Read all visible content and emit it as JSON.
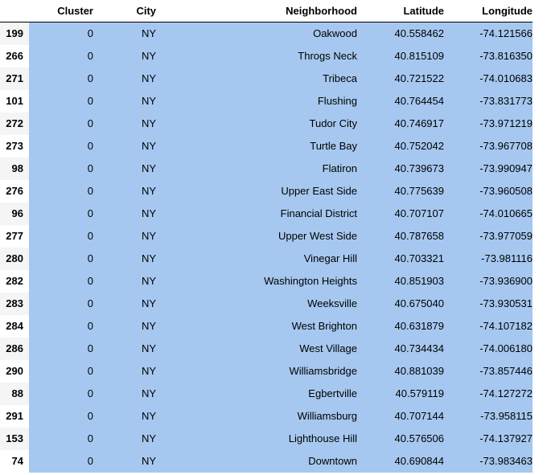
{
  "table": {
    "columns": [
      "Cluster",
      "City",
      "Neighborhood",
      "Latitude",
      "Longitude"
    ],
    "rows": [
      {
        "index": "199",
        "cluster": "0",
        "city": "NY",
        "neighborhood": "Oakwood",
        "latitude": "40.558462",
        "longitude": "-74.121566"
      },
      {
        "index": "266",
        "cluster": "0",
        "city": "NY",
        "neighborhood": "Throgs Neck",
        "latitude": "40.815109",
        "longitude": "-73.816350"
      },
      {
        "index": "271",
        "cluster": "0",
        "city": "NY",
        "neighborhood": "Tribeca",
        "latitude": "40.721522",
        "longitude": "-74.010683"
      },
      {
        "index": "101",
        "cluster": "0",
        "city": "NY",
        "neighborhood": "Flushing",
        "latitude": "40.764454",
        "longitude": "-73.831773"
      },
      {
        "index": "272",
        "cluster": "0",
        "city": "NY",
        "neighborhood": "Tudor City",
        "latitude": "40.746917",
        "longitude": "-73.971219"
      },
      {
        "index": "273",
        "cluster": "0",
        "city": "NY",
        "neighborhood": "Turtle Bay",
        "latitude": "40.752042",
        "longitude": "-73.967708"
      },
      {
        "index": "98",
        "cluster": "0",
        "city": "NY",
        "neighborhood": "Flatiron",
        "latitude": "40.739673",
        "longitude": "-73.990947"
      },
      {
        "index": "276",
        "cluster": "0",
        "city": "NY",
        "neighborhood": "Upper East Side",
        "latitude": "40.775639",
        "longitude": "-73.960508"
      },
      {
        "index": "96",
        "cluster": "0",
        "city": "NY",
        "neighborhood": "Financial District",
        "latitude": "40.707107",
        "longitude": "-74.010665"
      },
      {
        "index": "277",
        "cluster": "0",
        "city": "NY",
        "neighborhood": "Upper West Side",
        "latitude": "40.787658",
        "longitude": "-73.977059"
      },
      {
        "index": "280",
        "cluster": "0",
        "city": "NY",
        "neighborhood": "Vinegar Hill",
        "latitude": "40.703321",
        "longitude": "-73.981116"
      },
      {
        "index": "282",
        "cluster": "0",
        "city": "NY",
        "neighborhood": "Washington Heights",
        "latitude": "40.851903",
        "longitude": "-73.936900"
      },
      {
        "index": "283",
        "cluster": "0",
        "city": "NY",
        "neighborhood": "Weeksville",
        "latitude": "40.675040",
        "longitude": "-73.930531"
      },
      {
        "index": "284",
        "cluster": "0",
        "city": "NY",
        "neighborhood": "West Brighton",
        "latitude": "40.631879",
        "longitude": "-74.107182"
      },
      {
        "index": "286",
        "cluster": "0",
        "city": "NY",
        "neighborhood": "West Village",
        "latitude": "40.734434",
        "longitude": "-74.006180"
      },
      {
        "index": "290",
        "cluster": "0",
        "city": "NY",
        "neighborhood": "Williamsbridge",
        "latitude": "40.881039",
        "longitude": "-73.857446"
      },
      {
        "index": "88",
        "cluster": "0",
        "city": "NY",
        "neighborhood": "Egbertville",
        "latitude": "40.579119",
        "longitude": "-74.127272"
      },
      {
        "index": "291",
        "cluster": "0",
        "city": "NY",
        "neighborhood": "Williamsburg",
        "latitude": "40.707144",
        "longitude": "-73.958115"
      },
      {
        "index": "153",
        "cluster": "0",
        "city": "NY",
        "neighborhood": "Lighthouse Hill",
        "latitude": "40.576506",
        "longitude": "-74.137927"
      },
      {
        "index": "74",
        "cluster": "0",
        "city": "NY",
        "neighborhood": "Downtown",
        "latitude": "40.690844",
        "longitude": "-73.983463"
      }
    ]
  }
}
